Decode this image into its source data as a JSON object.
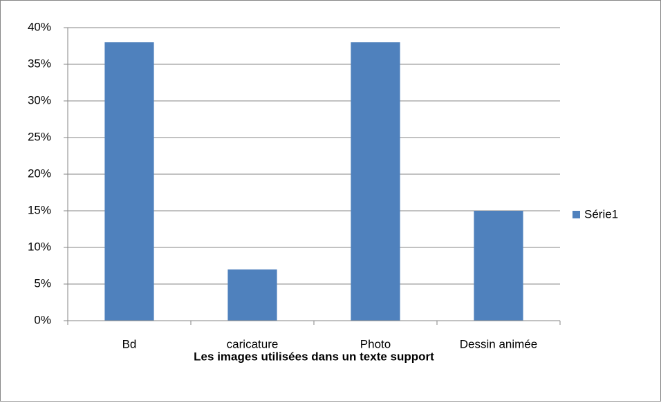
{
  "chart_data": {
    "type": "bar",
    "x_label": "Les images utilisées dans un texte support",
    "categories": [
      "Bd",
      "caricature",
      "Photo",
      "Dessin animée"
    ],
    "series": [
      {
        "name": "Série1",
        "color": "#4f81bd",
        "values": [
          38,
          7,
          38,
          15
        ]
      }
    ],
    "ylim": [
      0,
      40
    ],
    "yticks": [
      {
        "value": 0,
        "label": "0%"
      },
      {
        "value": 5,
        "label": "5%"
      },
      {
        "value": 10,
        "label": "10%"
      },
      {
        "value": 15,
        "label": "15%"
      },
      {
        "value": 20,
        "label": "20%"
      },
      {
        "value": 25,
        "label": "25%"
      },
      {
        "value": 30,
        "label": "30%"
      },
      {
        "value": 35,
        "label": "35%"
      },
      {
        "value": 40,
        "label": "40%"
      }
    ],
    "grid": true,
    "legend": "right"
  }
}
